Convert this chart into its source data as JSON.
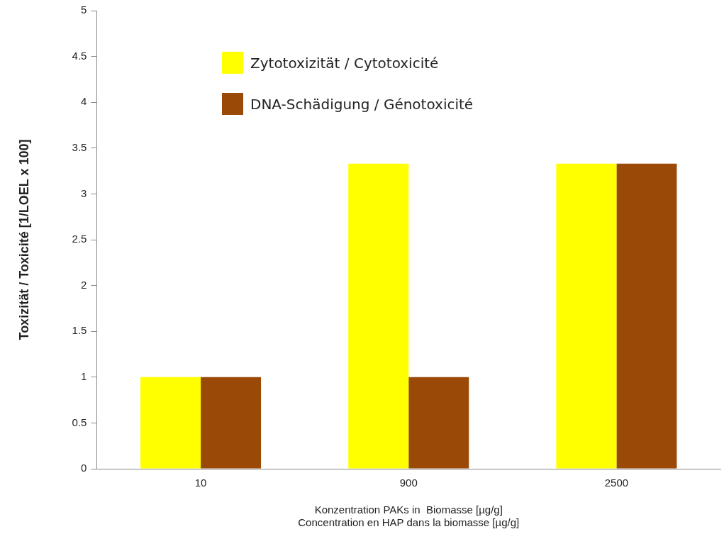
{
  "chart_data": {
    "type": "bar",
    "xlabel": "Konzentration PAKs in  Biomasse [µg/g]\nConcentration en HAP dans la biomasse [µg/g]",
    "ylabel": "Toxizität / Toxicité [1/LOEL x 100]",
    "categories": [
      "10",
      "900",
      "2500"
    ],
    "series": [
      {
        "name": "Zytotoxizität / Cytotoxicité",
        "color": "#ffff00",
        "values": [
          1,
          3.33,
          3.33
        ]
      },
      {
        "name": "DNA-Schädigung / Génotoxicité",
        "color": "#9a4a06",
        "values": [
          1,
          1,
          3.33
        ]
      }
    ],
    "ylim": [
      0,
      5
    ],
    "yticks": [
      0,
      0.5,
      1,
      1.5,
      2,
      2.5,
      3,
      3.5,
      4,
      {
        "value": 4.5,
        "label": "4.5"
      },
      5
    ],
    "grid": false,
    "legend": "top left"
  }
}
